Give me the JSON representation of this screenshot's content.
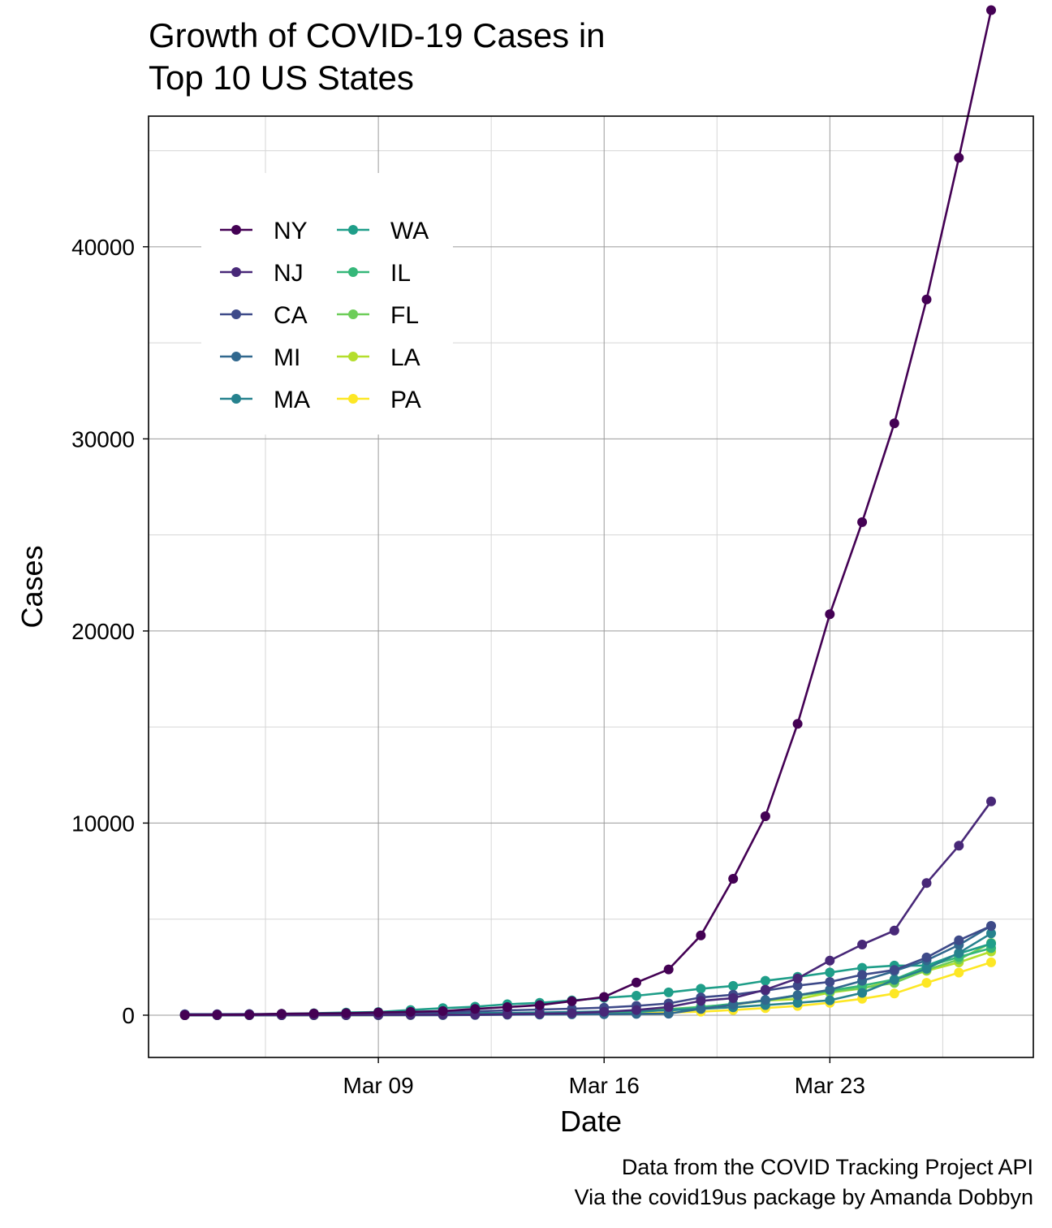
{
  "chart_data": {
    "type": "line",
    "title_lines": [
      "Growth of COVID-19 Cases in",
      "Top 10 US States"
    ],
    "xlabel": "Date",
    "ylabel": "Cases",
    "caption_lines": [
      "Data from the COVID Tracking Project API",
      "Via the covid19us package by Amanda Dobbyn"
    ],
    "x_type": "date",
    "x": [
      "2020-03-03",
      "2020-03-04",
      "2020-03-05",
      "2020-03-06",
      "2020-03-07",
      "2020-03-08",
      "2020-03-09",
      "2020-03-10",
      "2020-03-11",
      "2020-03-12",
      "2020-03-13",
      "2020-03-14",
      "2020-03-15",
      "2020-03-16",
      "2020-03-17",
      "2020-03-18",
      "2020-03-19",
      "2020-03-20",
      "2020-03-21",
      "2020-03-22",
      "2020-03-23",
      "2020-03-24",
      "2020-03-25",
      "2020-03-26",
      "2020-03-27",
      "2020-03-28"
    ],
    "x_ticks": [
      {
        "date": "2020-03-09",
        "label": "Mar 09"
      },
      {
        "date": "2020-03-16",
        "label": "Mar 16"
      },
      {
        "date": "2020-03-23",
        "label": "Mar 23"
      }
    ],
    "xlim": [
      "2020-03-02",
      "2020-03-28"
    ],
    "y_ticks": [
      0,
      10000,
      20000,
      30000,
      40000
    ],
    "ylim": [
      -2200,
      46800
    ],
    "grid": true,
    "legend_position": "inside top-left",
    "series": [
      {
        "name": "NY",
        "color": "#440154",
        "values": [
          10,
          22,
          33,
          76,
          89,
          106,
          142,
          173,
          216,
          328,
          421,
          524,
          729,
          950,
          1700,
          2382,
          4152,
          7102,
          10356,
          15168,
          20875,
          25665,
          30811,
          37258,
          44635,
          52318
        ]
      },
      {
        "name": "NJ",
        "color": "#482878",
        "values": [
          0,
          1,
          2,
          4,
          6,
          11,
          15,
          23,
          29,
          29,
          50,
          69,
          98,
          178,
          267,
          427,
          742,
          890,
          1327,
          1914,
          2844,
          3675,
          4402,
          6876,
          8825,
          11124
        ]
      },
      {
        "name": "CA",
        "color": "#3E4A89",
        "values": [
          53,
          53,
          60,
          60,
          69,
          88,
          114,
          133,
          157,
          202,
          252,
          293,
          335,
          392,
          483,
          611,
          924,
          1063,
          1279,
          1536,
          1733,
          2102,
          2355,
          3006,
          3899,
          4643
        ]
      },
      {
        "name": "MI",
        "color": "#31688E",
        "values": [
          0,
          0,
          0,
          0,
          0,
          0,
          0,
          2,
          2,
          12,
          25,
          33,
          45,
          54,
          65,
          80,
          334,
          549,
          787,
          1035,
          1328,
          1791,
          2294,
          2856,
          3657,
          4650
        ]
      },
      {
        "name": "MA",
        "color": "#26828E",
        "values": [
          2,
          2,
          3,
          7,
          28,
          28,
          41,
          92,
          95,
          108,
          123,
          138,
          164,
          197,
          218,
          256,
          328,
          413,
          525,
          646,
          777,
          1159,
          1838,
          2417,
          3240,
          4257
        ]
      },
      {
        "name": "WA",
        "color": "#1F9E89",
        "values": [
          18,
          27,
          39,
          70,
          102,
          136,
          162,
          267,
          366,
          442,
          568,
          642,
          769,
          904,
          1012,
          1187,
          1376,
          1524,
          1793,
          1996,
          2221,
          2469,
          2580,
          2580,
          3207,
          3723
        ]
      },
      {
        "name": "IL",
        "color": "#35B779",
        "values": [
          4,
          4,
          5,
          5,
          6,
          7,
          11,
          19,
          25,
          32,
          46,
          64,
          93,
          105,
          160,
          288,
          422,
          585,
          753,
          1049,
          1285,
          1535,
          1865,
          2538,
          3026,
          3491
        ]
      },
      {
        "name": "FL",
        "color": "#6DCD59",
        "values": [
          2,
          3,
          4,
          7,
          14,
          17,
          17,
          28,
          28,
          35,
          50,
          76,
          100,
          141,
          216,
          314,
          432,
          563,
          764,
          1007,
          1227,
          1412,
          1682,
          2355,
          2900,
          3763
        ]
      },
      {
        "name": "LA",
        "color": "#B4DE2C",
        "values": [
          0,
          0,
          0,
          0,
          0,
          0,
          1,
          6,
          13,
          19,
          36,
          77,
          103,
          136,
          196,
          280,
          392,
          538,
          763,
          837,
          1172,
          1388,
          1795,
          2305,
          2746,
          3315
        ]
      },
      {
        "name": "PA",
        "color": "#FDE725",
        "values": [
          0,
          0,
          0,
          2,
          4,
          6,
          10,
          12,
          16,
          22,
          41,
          47,
          63,
          76,
          96,
          133,
          185,
          268,
          371,
          479,
          644,
          851,
          1127,
          1687,
          2218,
          2751
        ]
      }
    ]
  }
}
